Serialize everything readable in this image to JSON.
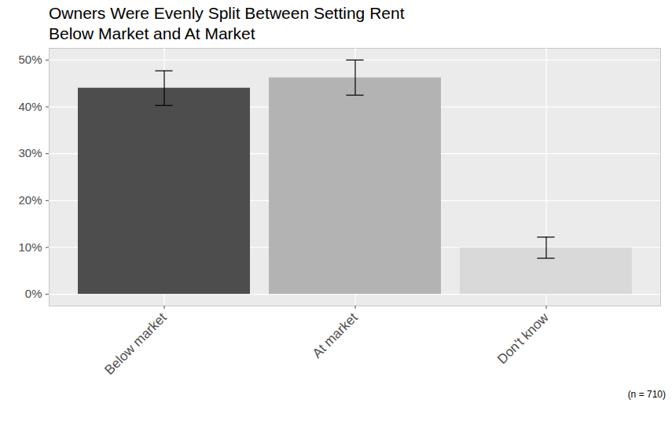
{
  "chart_data": {
    "type": "bar",
    "title": [
      "Owners Were Evenly Split Between Setting Rent",
      "Below Market and At Market"
    ],
    "caption": "(n = 710)",
    "categories": [
      "Below market",
      "At market",
      "Don't know"
    ],
    "values": [
      44,
      46.2,
      9.9
    ],
    "error_low": [
      40.3,
      42.5,
      7.7
    ],
    "error_high": [
      47.7,
      50,
      12.2
    ],
    "colors": [
      "#4d4d4d",
      "#b3b3b3",
      "#d9d9d9"
    ],
    "ylim": [
      -2.5,
      52.5
    ],
    "yticks": [
      {
        "value": 0,
        "label": "0%"
      },
      {
        "value": 10,
        "label": "10%"
      },
      {
        "value": 20,
        "label": "20%"
      },
      {
        "value": 30,
        "label": "30%"
      },
      {
        "value": 40,
        "label": "40%"
      },
      {
        "value": 50,
        "label": "50%"
      }
    ],
    "grid": true
  }
}
